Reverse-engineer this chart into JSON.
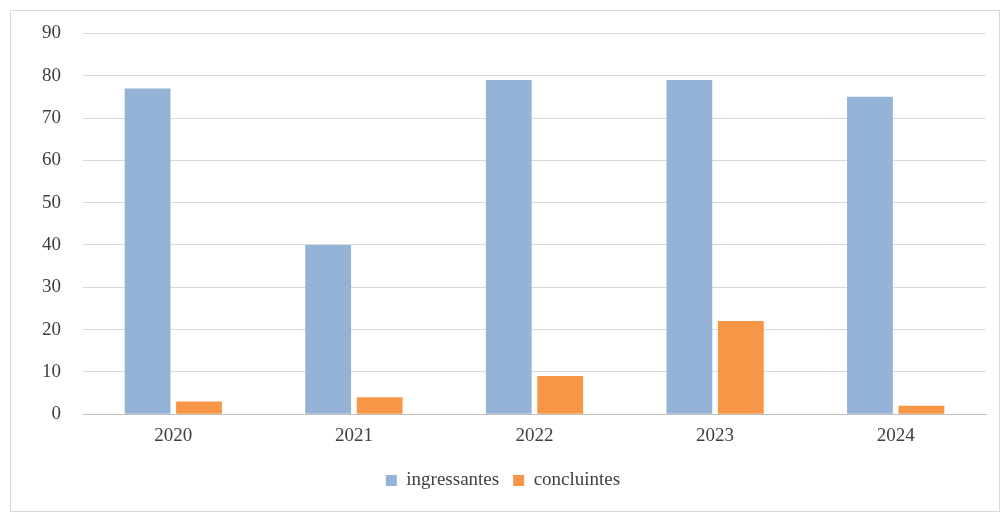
{
  "chart_data": {
    "type": "bar",
    "categories": [
      "2020",
      "2021",
      "2022",
      "2023",
      "2024"
    ],
    "series": [
      {
        "name": "ingressantes",
        "color": "#95b3d7",
        "values": [
          77,
          40,
          79,
          79,
          75
        ]
      },
      {
        "name": "concluintes",
        "color": "#f79646",
        "values": [
          3,
          4,
          9,
          22,
          2
        ]
      }
    ],
    "ylim": [
      0,
      90
    ],
    "yticks": [
      0,
      10,
      20,
      30,
      40,
      50,
      60,
      70,
      80,
      90
    ],
    "grid": "y",
    "legend": "bottom"
  }
}
